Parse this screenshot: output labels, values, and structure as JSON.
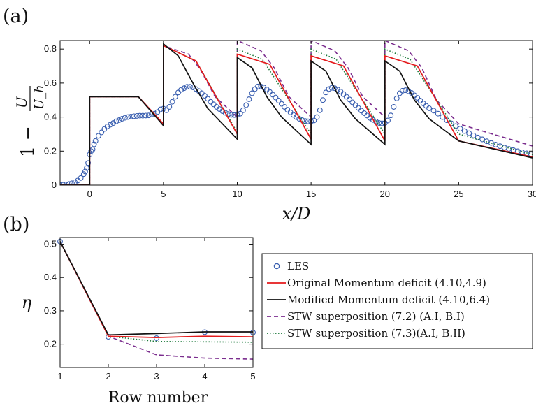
{
  "panels": {
    "a_label": "(a)",
    "b_label": "(b)"
  },
  "chart_data": [
    {
      "type": "line",
      "panel": "(a)",
      "xlabel": "x/D",
      "ylabel": "1 − U/U_h",
      "ylabel_parts": {
        "one_minus": "1 −",
        "numerator": "U",
        "denominator": "U_h"
      },
      "xlim": [
        -2,
        30
      ],
      "ylim": [
        0,
        0.85
      ],
      "xticks": [
        0,
        5,
        10,
        15,
        20,
        25,
        30
      ],
      "yticks": [
        0,
        0.2,
        0.4,
        0.6,
        0.8
      ],
      "series": [
        {
          "name": "LES",
          "marker": "circle",
          "color": "#3a5fb0",
          "x": [
            -2.0,
            -1.8,
            -1.6,
            -1.4,
            -1.2,
            -1.0,
            -0.8,
            -0.6,
            -0.4,
            -0.3,
            -0.2,
            -0.1,
            0.0,
            0.1,
            0.2,
            0.3,
            0.4,
            0.6,
            0.8,
            1.0,
            1.2,
            1.4,
            1.6,
            1.8,
            2.0,
            2.2,
            2.4,
            2.6,
            2.8,
            3.0,
            3.2,
            3.4,
            3.6,
            3.8,
            4.0,
            4.2,
            4.4,
            4.6,
            4.8,
            5.0,
            5.2,
            5.4,
            5.6,
            5.8,
            6.0,
            6.2,
            6.4,
            6.6,
            6.8,
            7.0,
            7.2,
            7.4,
            7.6,
            7.8,
            8.0,
            8.2,
            8.4,
            8.6,
            8.8,
            9.0,
            9.2,
            9.4,
            9.6,
            9.8,
            10.0,
            10.2,
            10.4,
            10.6,
            10.8,
            11.0,
            11.2,
            11.4,
            11.6,
            11.8,
            12.0,
            12.2,
            12.4,
            12.6,
            12.8,
            13.0,
            13.2,
            13.4,
            13.6,
            13.8,
            14.0,
            14.2,
            14.4,
            14.6,
            14.8,
            15.0,
            15.2,
            15.4,
            15.6,
            15.8,
            16.0,
            16.2,
            16.4,
            16.6,
            16.8,
            17.0,
            17.2,
            17.4,
            17.6,
            17.8,
            18.0,
            18.2,
            18.4,
            18.6,
            18.8,
            19.0,
            19.2,
            19.4,
            19.6,
            19.8,
            20.0,
            20.2,
            20.4,
            20.6,
            20.8,
            21.0,
            21.2,
            21.4,
            21.6,
            21.8,
            22.0,
            22.2,
            22.4,
            22.6,
            22.8,
            23.0,
            23.3,
            23.6,
            23.9,
            24.2,
            24.5,
            24.8,
            25.1,
            25.4,
            25.7,
            26.0,
            26.3,
            26.6,
            26.9,
            27.2,
            27.5,
            27.8,
            28.1,
            28.4,
            28.7,
            29.0,
            29.3,
            29.6,
            29.9
          ],
          "y": [
            0.0,
            0.002,
            0.004,
            0.007,
            0.011,
            0.017,
            0.027,
            0.042,
            0.065,
            0.08,
            0.1,
            0.13,
            0.18,
            0.2,
            0.21,
            0.24,
            0.26,
            0.29,
            0.31,
            0.33,
            0.345,
            0.355,
            0.365,
            0.375,
            0.382,
            0.39,
            0.396,
            0.4,
            0.403,
            0.405,
            0.407,
            0.408,
            0.408,
            0.409,
            0.41,
            0.415,
            0.42,
            0.43,
            0.445,
            0.45,
            0.44,
            0.46,
            0.49,
            0.52,
            0.545,
            0.56,
            0.57,
            0.578,
            0.578,
            0.575,
            0.565,
            0.553,
            0.54,
            0.525,
            0.508,
            0.49,
            0.475,
            0.46,
            0.447,
            0.435,
            0.425,
            0.418,
            0.413,
            0.412,
            0.413,
            0.42,
            0.44,
            0.47,
            0.505,
            0.54,
            0.565,
            0.58,
            0.58,
            0.574,
            0.562,
            0.548,
            0.532,
            0.515,
            0.497,
            0.478,
            0.46,
            0.443,
            0.428,
            0.413,
            0.4,
            0.39,
            0.382,
            0.377,
            0.375,
            0.375,
            0.38,
            0.4,
            0.44,
            0.5,
            0.545,
            0.565,
            0.572,
            0.57,
            0.562,
            0.55,
            0.535,
            0.52,
            0.504,
            0.487,
            0.47,
            0.454,
            0.438,
            0.423,
            0.409,
            0.395,
            0.383,
            0.374,
            0.366,
            0.363,
            0.365,
            0.38,
            0.41,
            0.46,
            0.51,
            0.54,
            0.555,
            0.558,
            0.552,
            0.542,
            0.528,
            0.513,
            0.497,
            0.481,
            0.466,
            0.452,
            0.438,
            0.42,
            0.4,
            0.381,
            0.363,
            0.347,
            0.332,
            0.318,
            0.305,
            0.292,
            0.28,
            0.269,
            0.258,
            0.248,
            0.238,
            0.229,
            0.221,
            0.213,
            0.206,
            0.199,
            0.193,
            0.187,
            0.181
          ]
        },
        {
          "name": "Original Momentum deficit (4.10,4.9)",
          "color": "#e41a1c",
          "style": "solid",
          "x": [
            -2,
            0,
            0.001,
            3.3,
            5,
            5.001,
            7.2,
            10,
            10.001,
            12.2,
            15,
            15.001,
            17.2,
            20,
            20.001,
            22.2,
            25,
            30
          ],
          "y": [
            0,
            0,
            0.52,
            0.52,
            0.36,
            0.82,
            0.73,
            0.3,
            0.77,
            0.71,
            0.27,
            0.76,
            0.7,
            0.26,
            0.76,
            0.7,
            0.26,
            0.165
          ]
        },
        {
          "name": "Modified Momentum deficit (4.10,6.4)",
          "color": "#111111",
          "style": "solid",
          "x": [
            -2,
            0,
            0.001,
            3.3,
            5,
            5.001,
            6.0,
            7,
            8,
            10,
            10.001,
            11.0,
            12,
            13,
            15,
            15.001,
            16.0,
            17,
            18,
            20,
            20.001,
            21.0,
            22,
            23,
            25,
            30
          ],
          "y": [
            0,
            0,
            0.52,
            0.52,
            0.35,
            0.83,
            0.76,
            0.6,
            0.45,
            0.27,
            0.75,
            0.69,
            0.52,
            0.4,
            0.24,
            0.73,
            0.67,
            0.5,
            0.39,
            0.24,
            0.73,
            0.67,
            0.5,
            0.39,
            0.26,
            0.16
          ]
        },
        {
          "name": "STW superposition (7.2) (A.I, B.I)",
          "color": "#7b2d8e",
          "style": "dashed",
          "x": [
            -2,
            0,
            0.001,
            3.3,
            5,
            5.001,
            6.7,
            7.5,
            8.5,
            10,
            10.001,
            11.6,
            12.5,
            13.5,
            15,
            15.001,
            16.6,
            17.5,
            18.5,
            20,
            20.001,
            21.6,
            22.5,
            23.5,
            25,
            30
          ],
          "y": [
            0,
            0,
            0.52,
            0.52,
            0.36,
            0.82,
            0.77,
            0.68,
            0.52,
            0.4,
            0.85,
            0.79,
            0.69,
            0.52,
            0.4,
            0.85,
            0.79,
            0.69,
            0.52,
            0.4,
            0.85,
            0.79,
            0.69,
            0.5,
            0.36,
            0.23
          ]
        },
        {
          "name": "STW superposition (7.3)(A.I, B.II)",
          "color": "#1e7a3c",
          "style": "dotted",
          "x": [
            -2,
            0,
            0.001,
            3.3,
            5,
            5.001,
            7.2,
            10,
            10.001,
            11.7,
            15,
            15.001,
            16.7,
            20,
            20.001,
            21.7,
            25,
            30
          ],
          "y": [
            0,
            0,
            0.52,
            0.52,
            0.36,
            0.82,
            0.73,
            0.31,
            0.8,
            0.74,
            0.3,
            0.8,
            0.74,
            0.3,
            0.8,
            0.74,
            0.3,
            0.18
          ]
        }
      ]
    },
    {
      "type": "line",
      "panel": "(b)",
      "xlabel": "Row number",
      "ylabel": "η",
      "xlim": [
        1,
        5
      ],
      "ylim": [
        0.13,
        0.52
      ],
      "xticks": [
        1,
        2,
        3,
        4,
        5
      ],
      "yticks": [
        0.2,
        0.3,
        0.4,
        0.5
      ],
      "legend_position": "right",
      "series": [
        {
          "name": "LES",
          "marker": "circle",
          "color": "#3a5fb0",
          "x": [
            1,
            2,
            3,
            4,
            5
          ],
          "y": [
            0.508,
            0.222,
            0.218,
            0.236,
            0.235
          ]
        },
        {
          "name": "Original Momentum deficit (4.10,4.9)",
          "color": "#e41a1c",
          "style": "solid",
          "x": [
            1,
            2,
            3,
            4,
            5
          ],
          "y": [
            0.508,
            0.224,
            0.22,
            0.224,
            0.222
          ]
        },
        {
          "name": "Modified Momentum deficit (4.10,6.4)",
          "color": "#111111",
          "style": "solid",
          "x": [
            1,
            2,
            3,
            4,
            5
          ],
          "y": [
            0.508,
            0.228,
            0.232,
            0.237,
            0.237
          ]
        },
        {
          "name": "STW superposition (7.2) (A.I, B.I)",
          "color": "#7b2d8e",
          "style": "dashed",
          "x": [
            1,
            2,
            3,
            4,
            5
          ],
          "y": [
            0.508,
            0.224,
            0.168,
            0.158,
            0.155
          ]
        },
        {
          "name": "STW superposition (7.3)(A.I, B.II)",
          "color": "#1e7a3c",
          "style": "dotted",
          "x": [
            1,
            2,
            3,
            4,
            5
          ],
          "y": [
            0.508,
            0.224,
            0.208,
            0.207,
            0.206
          ]
        }
      ]
    }
  ]
}
